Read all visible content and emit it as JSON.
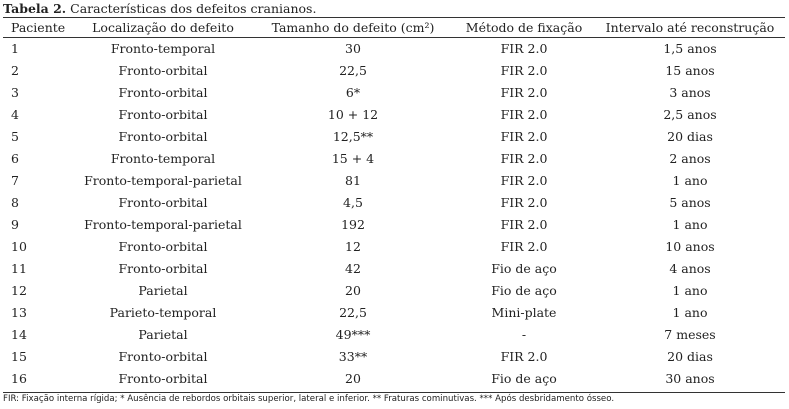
{
  "caption": {
    "label": "Tabela 2.",
    "text": " Características dos defeitos cranianos."
  },
  "headers": [
    "Paciente",
    "Localização do defeito",
    "Tamanho do defeito (cm²)",
    "Método de fixação",
    "Intervalo até reconstrução"
  ],
  "rows": [
    [
      "1",
      "Fronto-temporal",
      "30",
      "FIR 2.0",
      "1,5 anos"
    ],
    [
      "2",
      "Fronto-orbital",
      "22,5",
      "FIR 2.0",
      "15 anos"
    ],
    [
      "3",
      "Fronto-orbital",
      "6*",
      "FIR 2.0",
      "3 anos"
    ],
    [
      "4",
      "Fronto-orbital",
      "10 + 12",
      "FIR 2.0",
      "2,5 anos"
    ],
    [
      "5",
      "Fronto-orbital",
      "12,5**",
      "FIR 2.0",
      "20 dias"
    ],
    [
      "6",
      "Fronto-temporal",
      "15 + 4",
      "FIR 2.0",
      "2 anos"
    ],
    [
      "7",
      "Fronto-temporal-parietal",
      "81",
      "FIR 2.0",
      "1 ano"
    ],
    [
      "8",
      "Fronto-orbital",
      "4,5",
      "FIR 2.0",
      "5 anos"
    ],
    [
      "9",
      "Fronto-temporal-parietal",
      "192",
      "FIR 2.0",
      "1 ano"
    ],
    [
      "10",
      "Fronto-orbital",
      "12",
      "FIR 2.0",
      "10 anos"
    ],
    [
      "11",
      "Fronto-orbital",
      "42",
      "Fio de aço",
      "4 anos"
    ],
    [
      "12",
      "Parietal",
      "20",
      "Fio de aço",
      "1 ano"
    ],
    [
      "13",
      "Parieto-temporal",
      "22,5",
      "Mini-plate",
      "1 ano"
    ],
    [
      "14",
      "Parietal",
      "49***",
      "-",
      "7 meses"
    ],
    [
      "15",
      "Fronto-orbital",
      "33**",
      "FIR 2.0",
      "20 dias"
    ],
    [
      "16",
      "Fronto-orbital",
      "20",
      "Fio de aço",
      "30 anos"
    ]
  ],
  "footnote": "FIR: Fixação interna rígida; * Ausência de rebordos orbitais superior, lateral e inferior. ** Fraturas cominutivas. *** Após desbridamento ósseo."
}
